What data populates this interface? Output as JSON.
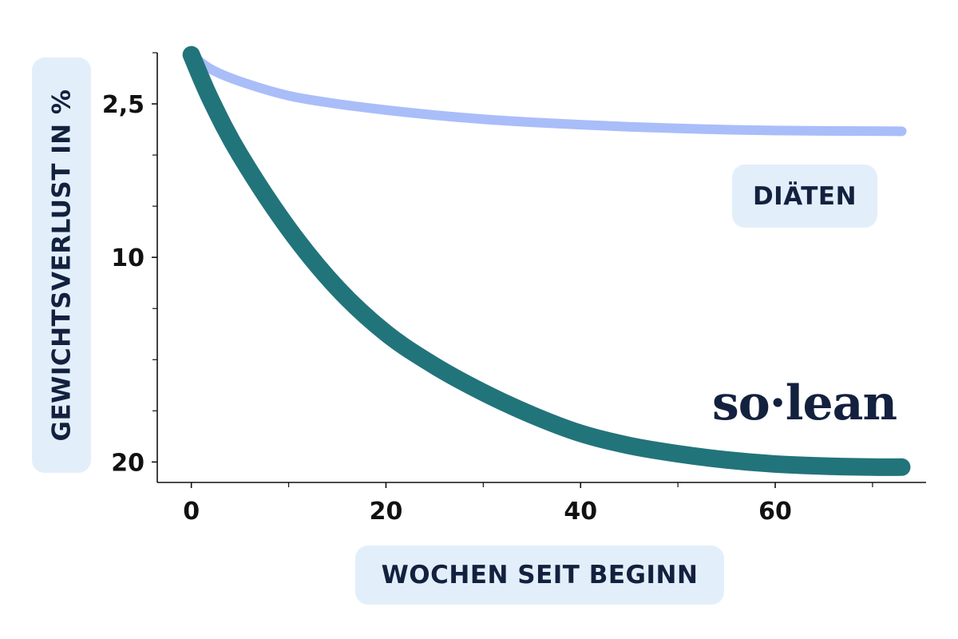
{
  "chart_data": {
    "type": "line",
    "xlabel": "WOCHEN SEIT BEGINN",
    "ylabel": "GEWICHTSVERLUST IN %",
    "x_ticks": [
      0,
      20,
      40,
      60
    ],
    "x_tick_labels": [
      "0",
      "20",
      "40",
      "60"
    ],
    "xlim": [
      -3.5,
      75.5
    ],
    "y_ticks": [
      2.5,
      10,
      20
    ],
    "y_tick_labels": [
      "2,5",
      "10",
      "20"
    ],
    "y_scale": "reversed",
    "ylim": [
      0,
      21
    ],
    "x_minor_ticks": [
      10,
      30,
      50,
      70
    ],
    "y_minor_ticks": [
      0,
      5,
      7.5,
      12.5,
      15,
      17.5
    ],
    "series": [
      {
        "name": "DIÄTEN",
        "color": "#a9bdf9",
        "x": [
          0,
          2,
          5,
          10,
          15,
          20,
          25,
          30,
          35,
          40,
          45,
          50,
          55,
          60,
          65,
          70,
          73
        ],
        "y": [
          0.1,
          0.8,
          1.4,
          2.1,
          2.5,
          2.8,
          3.05,
          3.25,
          3.4,
          3.52,
          3.62,
          3.7,
          3.76,
          3.8,
          3.82,
          3.83,
          3.84
        ]
      },
      {
        "name": "so·lean",
        "color": "#22747b",
        "x": [
          0,
          2,
          5,
          10,
          15,
          20,
          25,
          30,
          35,
          40,
          45,
          50,
          55,
          60,
          65,
          70,
          73
        ],
        "y": [
          0.1,
          2.3,
          5.0,
          8.6,
          11.5,
          13.7,
          15.3,
          16.6,
          17.7,
          18.6,
          19.2,
          19.6,
          19.9,
          20.1,
          20.2,
          20.25,
          20.25
        ]
      }
    ]
  },
  "legend": {
    "diaeten_label": "DIÄTEN",
    "solean_label": "so·lean"
  }
}
